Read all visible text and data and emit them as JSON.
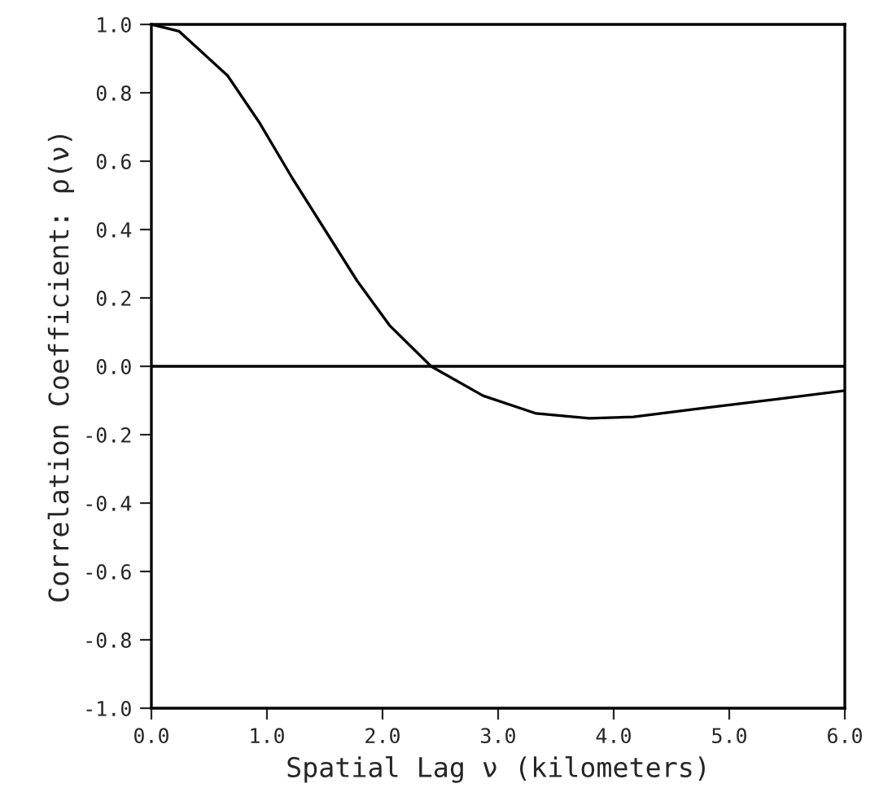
{
  "chart_data": {
    "type": "line",
    "xlabel": "Spatial Lag ν (kilometers)",
    "ylabel": "Correlation Coefficient: ρ(ν)",
    "x": [
      0,
      0.24,
      0.66,
      0.94,
      1.22,
      1.5,
      1.78,
      2.06,
      2.42,
      2.87,
      3.33,
      3.79,
      4.17,
      4.73,
      5.44,
      6.0
    ],
    "series": [
      {
        "color": "#000000",
        "values": [
          1.0,
          0.98,
          0.85,
          0.71,
          0.55,
          0.4,
          0.25,
          0.12,
          0.0,
          -0.086,
          -0.138,
          -0.152,
          -0.148,
          -0.124,
          -0.095,
          -0.071
        ]
      }
    ],
    "xlim": [
      0,
      6
    ],
    "ylim": [
      -1,
      1
    ],
    "xticks": [
      {
        "value": 0,
        "label": "0.0"
      },
      {
        "value": 1,
        "label": "1.0"
      },
      {
        "value": 2,
        "label": "2.0"
      },
      {
        "value": 3,
        "label": "3.0"
      },
      {
        "value": 4,
        "label": "4.0"
      },
      {
        "value": 5,
        "label": "5.0"
      },
      {
        "value": 6,
        "label": "6.0"
      }
    ],
    "yticks": [
      {
        "value": -1,
        "label": "-1.0"
      },
      {
        "value": -0.8,
        "label": "-0.8"
      },
      {
        "value": -0.6,
        "label": "-0.6"
      },
      {
        "value": -0.4,
        "label": "-0.4"
      },
      {
        "value": -0.2,
        "label": "-0.2"
      },
      {
        "value": 0,
        "label": "0.0"
      },
      {
        "value": 0.2,
        "label": "0.2"
      },
      {
        "value": 0.4,
        "label": "0.4"
      },
      {
        "value": 0.6,
        "label": "0.6"
      },
      {
        "value": 0.8,
        "label": "0.8"
      },
      {
        "value": 1,
        "label": "1.0"
      }
    ],
    "ref_lines": [
      {
        "axis": "y",
        "value": 0,
        "color": "#000000"
      }
    ],
    "grid": false,
    "legend": false,
    "marker": "none",
    "line_style": "solid"
  }
}
